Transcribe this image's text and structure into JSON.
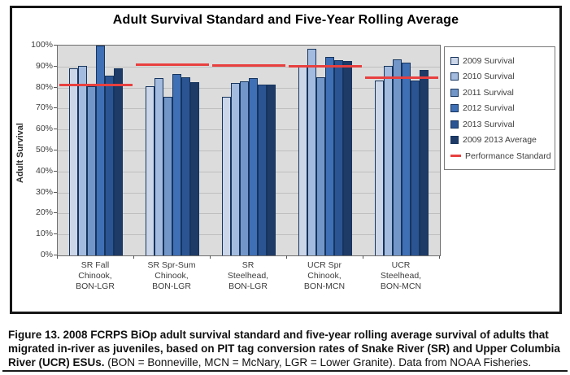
{
  "figure": {
    "caption_bold": "Figure 13.   2008 FCRPS BiOp adult survival standard and five-year rolling average survival of adults that migrated in-river as juveniles, based on PIT tag conversion rates of Snake River (SR) and Upper Columbia River (UCR) ESUs.",
    "caption_regular": "  (BON = Bonneville, MCN = McNary, LGR = Lower Granite).  Data from NOAA Fisheries."
  },
  "chart_data": {
    "type": "bar",
    "title": "Adult Survival Standard and Five-Year Rolling Average",
    "xlabel": "",
    "ylabel": "Adult Survival",
    "ylim": [
      0,
      100
    ],
    "ytick_step": 10,
    "yticks": [
      "0%",
      "10%",
      "20%",
      "30%",
      "40%",
      "50%",
      "60%",
      "70%",
      "80%",
      "90%",
      "100%"
    ],
    "grid": true,
    "legend_position": "right",
    "plot_background": "#dcdcdc",
    "categories": [
      [
        "SR Fall",
        "Chinook,",
        "BON-LGR"
      ],
      [
        "SR Spr-Sum",
        "Chinook,",
        "BON-LGR"
      ],
      [
        "SR",
        "Steelhead,",
        "BON-LGR"
      ],
      [
        "UCR Spr",
        "Chinook,",
        "BON-MCN"
      ],
      [
        "UCR",
        "Steelhead,",
        "BON-MCN"
      ]
    ],
    "series": [
      {
        "name": "2009 Survival",
        "color": "#ccd6e9",
        "values": [
          89.0,
          80.5,
          75.5,
          90.5,
          83.5
        ]
      },
      {
        "name": "2010 Survival",
        "color": "#a3bbde",
        "values": [
          90.5,
          84.5,
          82.0,
          98.5,
          90.5
        ]
      },
      {
        "name": "2011 Survival",
        "color": "#7396c9",
        "values": [
          80.5,
          75.5,
          83.0,
          85.0,
          93.5
        ]
      },
      {
        "name": "2012 Survival",
        "color": "#3f6fb5",
        "values": [
          100.0,
          86.5,
          84.5,
          94.5,
          92.0
        ]
      },
      {
        "name": "2013 Survival",
        "color": "#2b5493",
        "values": [
          85.5,
          85.0,
          81.5,
          93.0,
          83.5
        ]
      },
      {
        "name": "2009 2013 Average",
        "color": "#1e3a66",
        "values": [
          89.0,
          82.5,
          81.5,
          92.5,
          88.5
        ]
      }
    ],
    "performance_standard": {
      "name": "Performance Standard",
      "color": "#e8403f",
      "values": [
        81.2,
        91.0,
        90.5,
        90.0,
        84.5
      ]
    }
  }
}
